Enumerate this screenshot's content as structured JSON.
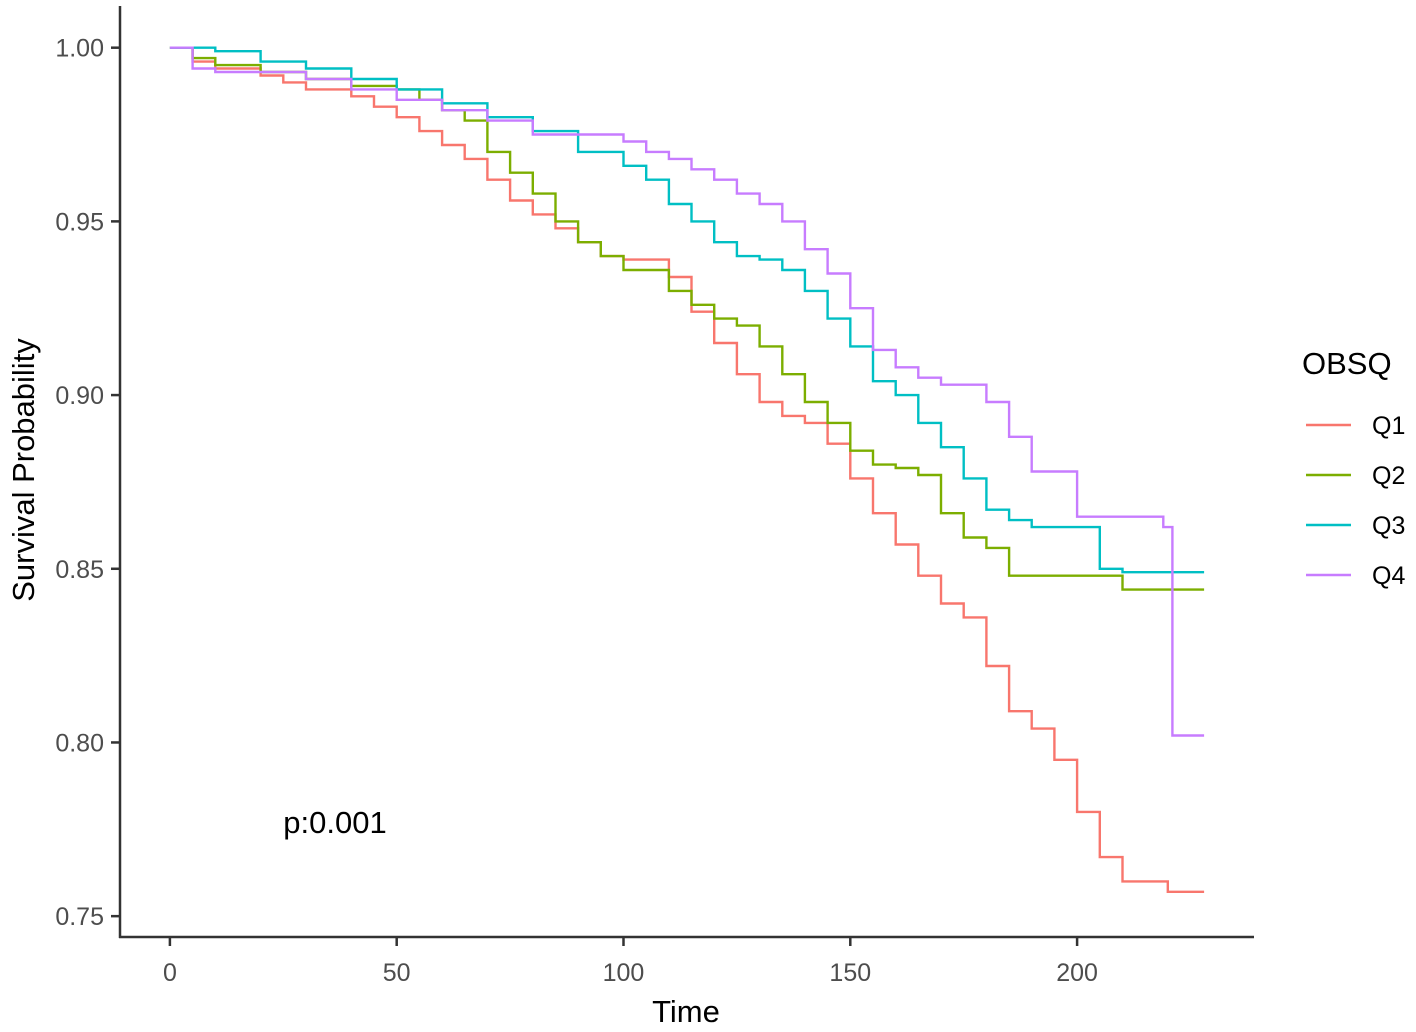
{
  "chart_data": {
    "type": "line",
    "title": "",
    "xlabel": "Time",
    "ylabel": "Survival Probability",
    "xlim": [
      -11,
      239
    ],
    "ylim": [
      0.744,
      1.012
    ],
    "x_ticks": [
      0,
      50,
      100,
      150,
      200
    ],
    "y_ticks": [
      0.75,
      0.8,
      0.85,
      0.9,
      0.95,
      1.0
    ],
    "x_tick_labels": [
      "0",
      "50",
      "100",
      "150",
      "200"
    ],
    "y_tick_labels": [
      "0.75",
      "0.80",
      "0.85",
      "0.90",
      "0.95",
      "1.00"
    ],
    "grid": false,
    "legend": {
      "title": "OBSQ",
      "placement": "right"
    },
    "annotation": {
      "text": "p:0.001",
      "x": 25,
      "y": 0.774
    },
    "series": [
      {
        "name": "Q1",
        "color": "#F8766D",
        "step": true,
        "x": [
          0,
          5,
          10,
          20,
          25,
          30,
          40,
          45,
          50,
          55,
          60,
          65,
          70,
          75,
          80,
          85,
          90,
          95,
          100,
          110,
          115,
          120,
          125,
          130,
          135,
          140,
          145,
          150,
          155,
          160,
          165,
          170,
          175,
          180,
          185,
          190,
          195,
          200,
          205,
          210,
          220,
          228
        ],
        "y": [
          1.0,
          0.996,
          0.994,
          0.992,
          0.99,
          0.988,
          0.986,
          0.983,
          0.98,
          0.976,
          0.972,
          0.968,
          0.962,
          0.956,
          0.952,
          0.948,
          0.944,
          0.94,
          0.939,
          0.934,
          0.924,
          0.915,
          0.906,
          0.898,
          0.894,
          0.892,
          0.886,
          0.876,
          0.866,
          0.857,
          0.848,
          0.84,
          0.836,
          0.822,
          0.809,
          0.804,
          0.795,
          0.78,
          0.767,
          0.76,
          0.757,
          0.757
        ]
      },
      {
        "name": "Q2",
        "color": "#7CAE00",
        "step": true,
        "x": [
          0,
          5,
          10,
          20,
          30,
          40,
          50,
          55,
          60,
          65,
          70,
          75,
          80,
          85,
          90,
          95,
          100,
          110,
          115,
          120,
          125,
          130,
          135,
          140,
          145,
          150,
          155,
          160,
          165,
          170,
          175,
          180,
          185,
          190,
          200,
          210,
          220,
          228
        ],
        "y": [
          1.0,
          0.997,
          0.995,
          0.993,
          0.991,
          0.989,
          0.988,
          0.985,
          0.982,
          0.979,
          0.97,
          0.964,
          0.958,
          0.95,
          0.944,
          0.94,
          0.936,
          0.93,
          0.926,
          0.922,
          0.92,
          0.914,
          0.906,
          0.898,
          0.892,
          0.884,
          0.88,
          0.879,
          0.877,
          0.866,
          0.859,
          0.856,
          0.848,
          0.848,
          0.848,
          0.844,
          0.844,
          0.844
        ]
      },
      {
        "name": "Q3",
        "color": "#00BFC4",
        "step": true,
        "x": [
          0,
          10,
          20,
          30,
          40,
          50,
          60,
          70,
          80,
          90,
          100,
          105,
          110,
          115,
          120,
          125,
          130,
          135,
          140,
          145,
          150,
          155,
          160,
          165,
          170,
          175,
          180,
          185,
          190,
          200,
          205,
          210,
          220,
          228
        ],
        "y": [
          1.0,
          0.999,
          0.996,
          0.994,
          0.991,
          0.988,
          0.984,
          0.98,
          0.976,
          0.97,
          0.966,
          0.962,
          0.955,
          0.95,
          0.944,
          0.94,
          0.939,
          0.936,
          0.93,
          0.922,
          0.914,
          0.904,
          0.9,
          0.892,
          0.885,
          0.876,
          0.867,
          0.864,
          0.862,
          0.862,
          0.85,
          0.849,
          0.849,
          0.849
        ]
      },
      {
        "name": "Q4",
        "color": "#C77CFF",
        "step": true,
        "x": [
          0,
          5,
          10,
          20,
          30,
          40,
          50,
          60,
          70,
          80,
          90,
          100,
          105,
          110,
          115,
          120,
          125,
          130,
          135,
          140,
          145,
          150,
          155,
          160,
          165,
          170,
          175,
          180,
          185,
          190,
          200,
          205,
          210,
          215,
          219,
          221,
          228
        ],
        "y": [
          1.0,
          0.994,
          0.993,
          0.993,
          0.991,
          0.988,
          0.985,
          0.982,
          0.979,
          0.975,
          0.975,
          0.973,
          0.97,
          0.968,
          0.965,
          0.962,
          0.958,
          0.955,
          0.95,
          0.942,
          0.935,
          0.925,
          0.913,
          0.908,
          0.905,
          0.903,
          0.903,
          0.898,
          0.888,
          0.878,
          0.865,
          0.865,
          0.865,
          0.865,
          0.862,
          0.802,
          0.802
        ]
      }
    ]
  }
}
